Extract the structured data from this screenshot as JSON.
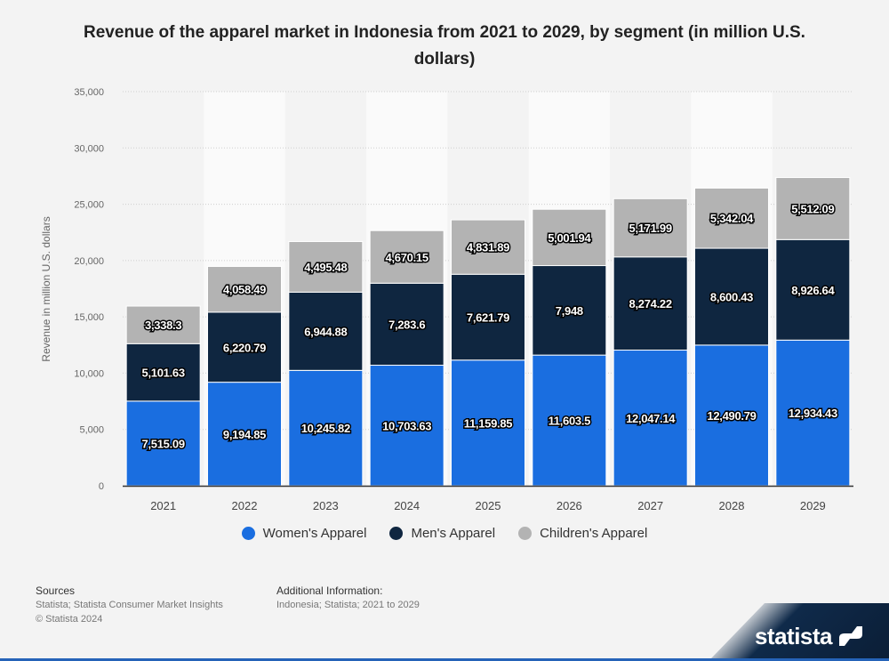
{
  "chart_data": {
    "type": "bar",
    "stacked": true,
    "title": "Revenue of the apparel market in Indonesia from 2021 to 2029, by segment (in million U.S. dollars)",
    "xlabel": "",
    "ylabel": "Revenue in million U.S. dollars",
    "ylim": [
      0,
      35000
    ],
    "yticks": [
      0,
      5000,
      10000,
      15000,
      20000,
      25000,
      30000,
      35000
    ],
    "ytick_labels": [
      "0",
      "5,000",
      "10,000",
      "15,000",
      "20,000",
      "25,000",
      "30,000",
      "35,000"
    ],
    "grid": true,
    "legend_position": "bottom",
    "categories": [
      "2021",
      "2022",
      "2023",
      "2024",
      "2025",
      "2026",
      "2027",
      "2028",
      "2029"
    ],
    "series": [
      {
        "name": "Women's Apparel",
        "color": "#1a6ee0",
        "values": [
          7515.09,
          9194.85,
          10245.82,
          10703.63,
          11159.85,
          11603.5,
          12047.14,
          12490.79,
          12934.43
        ],
        "labels": [
          "7,515.09",
          "9,194.85",
          "10,245.82",
          "10,703.63",
          "11,159.85",
          "11,603.5",
          "12,047.14",
          "12,490.79",
          "12,934.43"
        ]
      },
      {
        "name": "Men's Apparel",
        "color": "#0f2640",
        "values": [
          5101.63,
          6220.79,
          6944.88,
          7283.6,
          7621.79,
          7948,
          8274.22,
          8600.43,
          8926.64
        ],
        "labels": [
          "5,101.63",
          "6,220.79",
          "6,944.88",
          "7,283.6",
          "7,621.79",
          "7,948",
          "8,274.22",
          "8,600.43",
          "8,926.64"
        ]
      },
      {
        "name": "Children's Apparel",
        "color": "#b3b3b3",
        "values": [
          3338.3,
          4058.49,
          4495.48,
          4670.15,
          4831.89,
          5001.94,
          5171.99,
          5342.04,
          5512.09
        ],
        "labels": [
          "3,338.3",
          "4,058.49",
          "4,495.48",
          "4,670.15",
          "4,831.89",
          "5,001.94",
          "5,171.99",
          "5,342.04",
          "5,512.09"
        ]
      }
    ]
  },
  "footer": {
    "sources_heading": "Sources",
    "sources_line1": "Statista; Statista Consumer Market Insights",
    "sources_line2": "© Statista 2024",
    "additional_heading": "Additional Information:",
    "additional_line1": "Indonesia; Statista; 2021 to 2029"
  },
  "brand": {
    "name": "statista"
  }
}
